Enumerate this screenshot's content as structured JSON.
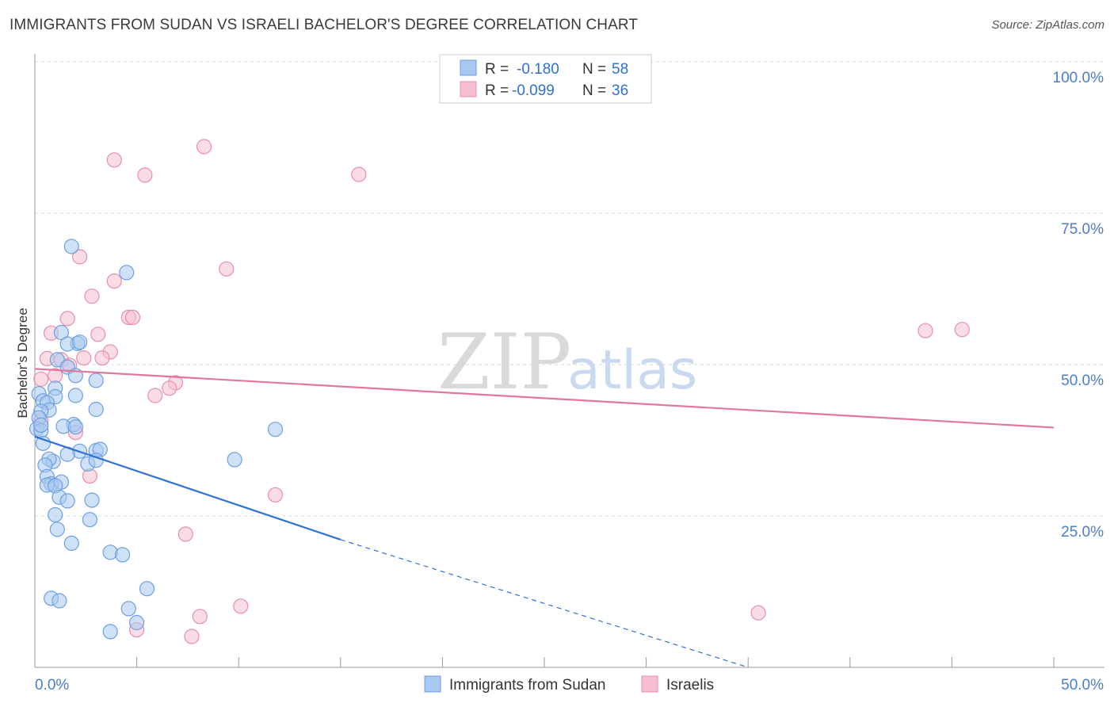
{
  "header": {
    "title": "IMMIGRANTS FROM SUDAN VS ISRAELI BACHELOR'S DEGREE CORRELATION CHART",
    "source": "Source: ZipAtlas.com"
  },
  "watermark": {
    "zip": "ZIP",
    "atlas": "atlas"
  },
  "legend": {
    "rows": [
      {
        "r_label": "R =",
        "r_value": "-0.180",
        "n_label": "N =",
        "n_value": "58"
      },
      {
        "r_label": "R =",
        "r_value": "-0.099",
        "n_label": "N =",
        "n_value": "36"
      }
    ]
  },
  "bottom_legend": {
    "items": [
      {
        "label": "Immigrants from Sudan"
      },
      {
        "label": "Israelis"
      }
    ]
  },
  "colors": {
    "blue_fill": "#a8c8f0",
    "blue_stroke": "#6d9fe0",
    "blue_line": "#2f72d6",
    "pink_fill": "#f6bfd0",
    "pink_stroke": "#e88fab",
    "pink_line": "#e2779c",
    "grid": "#d8d8d8"
  },
  "chart_data": {
    "type": "scatter",
    "title": "IMMIGRANTS FROM SUDAN VS ISRAELI BACHELOR'S DEGREE CORRELATION CHART",
    "xlabel": "",
    "ylabel": "Bachelor's Degree",
    "xlim": [
      0,
      50
    ],
    "ylim": [
      0,
      100
    ],
    "x_tick_labels": {
      "left": "0.0%",
      "right": "50.0%"
    },
    "y_ticks": [
      {
        "value": 100,
        "label": "100.0%"
      },
      {
        "value": 75,
        "label": "75.0%"
      },
      {
        "value": 50,
        "label": "50.0%"
      },
      {
        "value": 25,
        "label": "25.0%"
      }
    ],
    "series": [
      {
        "name": "Immigrants from Sudan",
        "color": "blue",
        "r": -0.18,
        "n": 58,
        "trend": {
          "x0": 0,
          "y0": 38.1,
          "x1": 15,
          "y1": 21.1,
          "dash_to_x": 35,
          "dash_to_y": -1.5
        },
        "points": [
          [
            1.8,
            69.5
          ],
          [
            4.5,
            65.2
          ],
          [
            1.3,
            55.3
          ],
          [
            2.1,
            53.5
          ],
          [
            1.6,
            53.4
          ],
          [
            2.2,
            53.7
          ],
          [
            1.1,
            50.8
          ],
          [
            1.6,
            49.6
          ],
          [
            2.0,
            48.2
          ],
          [
            3.0,
            47.4
          ],
          [
            0.2,
            45.2
          ],
          [
            1.0,
            46.1
          ],
          [
            1.0,
            44.7
          ],
          [
            2.0,
            44.9
          ],
          [
            0.4,
            44.0
          ],
          [
            0.6,
            43.7
          ],
          [
            0.7,
            42.5
          ],
          [
            0.3,
            42.3
          ],
          [
            3.0,
            42.6
          ],
          [
            0.2,
            41.2
          ],
          [
            1.9,
            40.1
          ],
          [
            1.4,
            39.8
          ],
          [
            2.0,
            39.7
          ],
          [
            0.1,
            39.4
          ],
          [
            0.3,
            39.1
          ],
          [
            11.8,
            39.3
          ],
          [
            0.4,
            37.0
          ],
          [
            3.0,
            35.8
          ],
          [
            2.2,
            35.7
          ],
          [
            3.2,
            36.0
          ],
          [
            1.6,
            35.2
          ],
          [
            0.9,
            34.0
          ],
          [
            0.7,
            34.4
          ],
          [
            2.6,
            33.6
          ],
          [
            3.0,
            34.2
          ],
          [
            0.5,
            33.4
          ],
          [
            9.8,
            34.3
          ],
          [
            0.6,
            31.5
          ],
          [
            0.8,
            30.3
          ],
          [
            1.3,
            30.6
          ],
          [
            0.6,
            30.1
          ],
          [
            1.0,
            30.0
          ],
          [
            1.2,
            28.1
          ],
          [
            1.6,
            27.5
          ],
          [
            2.8,
            27.6
          ],
          [
            1.0,
            25.2
          ],
          [
            2.7,
            24.4
          ],
          [
            1.1,
            22.8
          ],
          [
            1.8,
            20.5
          ],
          [
            3.7,
            19.0
          ],
          [
            4.3,
            18.6
          ],
          [
            5.5,
            13.0
          ],
          [
            0.8,
            11.4
          ],
          [
            1.2,
            11.0
          ],
          [
            4.6,
            9.7
          ],
          [
            5.0,
            7.4
          ],
          [
            3.7,
            5.9
          ],
          [
            0.3,
            40.0
          ]
        ]
      },
      {
        "name": "Israelis",
        "color": "pink",
        "r": -0.099,
        "n": 36,
        "trend": {
          "x0": 0,
          "y0": 49.3,
          "x1": 50,
          "y1": 39.6
        },
        "points": [
          [
            8.3,
            86.0
          ],
          [
            3.9,
            83.8
          ],
          [
            5.4,
            81.3
          ],
          [
            15.9,
            81.4
          ],
          [
            2.2,
            67.8
          ],
          [
            9.4,
            65.8
          ],
          [
            3.9,
            63.8
          ],
          [
            2.8,
            61.3
          ],
          [
            4.6,
            57.8
          ],
          [
            1.6,
            57.6
          ],
          [
            4.8,
            57.8
          ],
          [
            0.8,
            55.2
          ],
          [
            3.1,
            55.0
          ],
          [
            43.7,
            55.6
          ],
          [
            45.5,
            55.8
          ],
          [
            3.7,
            52.1
          ],
          [
            3.3,
            51.1
          ],
          [
            2.4,
            51.1
          ],
          [
            0.6,
            51.0
          ],
          [
            1.3,
            50.8
          ],
          [
            1.7,
            49.9
          ],
          [
            1.0,
            48.2
          ],
          [
            0.3,
            47.6
          ],
          [
            6.9,
            47.0
          ],
          [
            6.6,
            46.1
          ],
          [
            5.9,
            44.9
          ],
          [
            0.3,
            40.8
          ],
          [
            2.0,
            38.8
          ],
          [
            2.7,
            31.6
          ],
          [
            11.8,
            28.5
          ],
          [
            7.4,
            22.0
          ],
          [
            10.1,
            10.1
          ],
          [
            8.1,
            8.4
          ],
          [
            35.5,
            9.0
          ],
          [
            5.0,
            6.2
          ],
          [
            7.7,
            5.1
          ]
        ]
      }
    ]
  }
}
